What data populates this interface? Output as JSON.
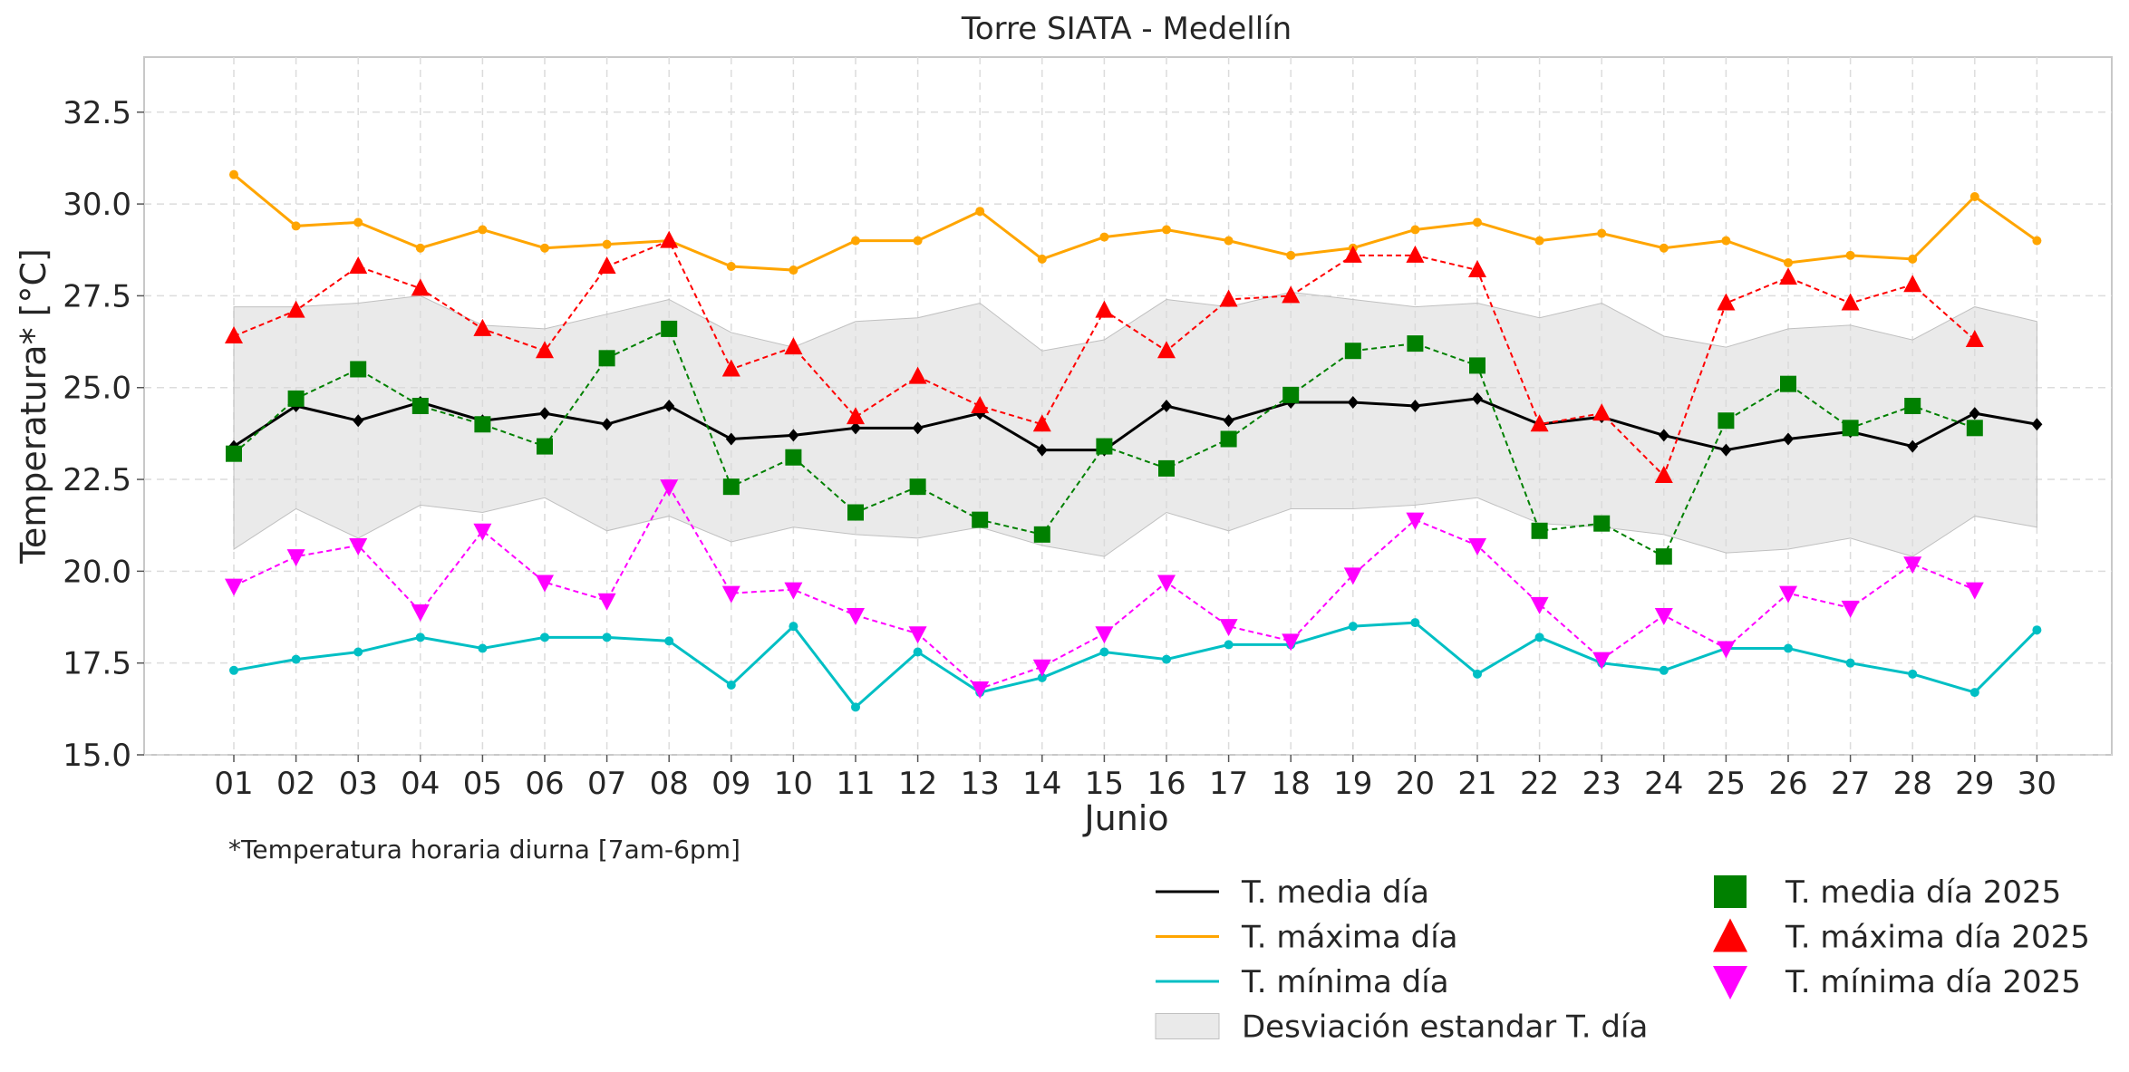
{
  "chart_data": {
    "type": "line",
    "title": "Torre SIATA - Medellín",
    "xlabel": "Junio",
    "ylabel": "Temperatura* [°C]",
    "note": "*Temperatura horaria diurna [7am-6pm]",
    "ylim": [
      15.0,
      34.0
    ],
    "yticks": [
      "15.0",
      "17.5",
      "20.0",
      "22.5",
      "25.0",
      "27.5",
      "30.0",
      "32.5"
    ],
    "categories": [
      "01",
      "02",
      "03",
      "04",
      "05",
      "06",
      "07",
      "08",
      "09",
      "10",
      "11",
      "12",
      "13",
      "14",
      "15",
      "16",
      "17",
      "18",
      "19",
      "20",
      "21",
      "22",
      "23",
      "24",
      "25",
      "26",
      "27",
      "28",
      "29",
      "30"
    ],
    "grid": true,
    "legend_position": "bottom-right",
    "band": {
      "name": "Desviación estandar T. día",
      "color": "#d9d9d9",
      "upper": [
        27.2,
        27.2,
        27.3,
        27.5,
        26.7,
        26.6,
        27.0,
        27.4,
        26.5,
        26.1,
        26.8,
        26.9,
        27.3,
        26.0,
        26.3,
        27.4,
        27.2,
        27.6,
        27.4,
        27.2,
        27.3,
        26.9,
        27.3,
        26.4,
        26.1,
        26.6,
        26.7,
        26.3,
        27.2,
        26.8
      ],
      "lower": [
        20.6,
        21.7,
        20.9,
        21.8,
        21.6,
        22.0,
        21.1,
        21.5,
        20.8,
        21.2,
        21.0,
        20.9,
        21.2,
        20.7,
        20.4,
        21.6,
        21.1,
        21.7,
        21.7,
        21.8,
        22.0,
        21.3,
        21.2,
        21.0,
        20.5,
        20.6,
        20.9,
        20.4,
        21.5,
        21.2
      ]
    },
    "series": [
      {
        "name": "T. media día",
        "color": "#000000",
        "style": "solid",
        "marker": "diamond-small",
        "values": [
          23.4,
          24.5,
          24.1,
          24.6,
          24.1,
          24.3,
          24.0,
          24.5,
          23.6,
          23.7,
          23.9,
          23.9,
          24.3,
          23.3,
          23.3,
          24.5,
          24.1,
          24.6,
          24.6,
          24.5,
          24.7,
          24.0,
          24.2,
          23.7,
          23.3,
          23.6,
          23.8,
          23.4,
          24.3,
          24.0
        ]
      },
      {
        "name": "T. máxima día",
        "color": "#ffa500",
        "style": "solid",
        "marker": "dot-small",
        "values": [
          30.8,
          29.4,
          29.5,
          28.8,
          29.3,
          28.8,
          28.9,
          29.0,
          28.3,
          28.2,
          29.0,
          29.0,
          29.8,
          28.5,
          29.1,
          29.3,
          29.0,
          28.6,
          28.8,
          29.3,
          29.5,
          29.0,
          29.2,
          28.8,
          29.0,
          28.4,
          28.6,
          28.5,
          30.2,
          29.0
        ]
      },
      {
        "name": "T. mínima día",
        "color": "#00bfc4",
        "style": "solid",
        "marker": "dot-small",
        "values": [
          17.3,
          17.6,
          17.8,
          18.2,
          17.9,
          18.2,
          18.2,
          18.1,
          16.9,
          18.5,
          16.3,
          17.8,
          16.7,
          17.1,
          17.8,
          17.6,
          18.0,
          18.0,
          18.5,
          18.6,
          17.2,
          18.2,
          17.5,
          17.3,
          17.9,
          17.9,
          17.5,
          17.2,
          16.7,
          18.4
        ]
      },
      {
        "name": "T. media día 2025",
        "color": "#008000",
        "style": "dashed",
        "marker": "square",
        "values": [
          23.2,
          24.7,
          25.5,
          24.5,
          24.0,
          23.4,
          25.8,
          26.6,
          22.3,
          23.1,
          21.6,
          22.3,
          21.4,
          21.0,
          23.4,
          22.8,
          23.6,
          24.8,
          26.0,
          26.2,
          25.6,
          21.1,
          21.3,
          20.4,
          24.1,
          25.1,
          23.9,
          24.5,
          23.9,
          null
        ]
      },
      {
        "name": "T. máxima día 2025",
        "color": "#ff0000",
        "style": "dashed",
        "marker": "triangle-up",
        "values": [
          26.4,
          27.1,
          28.3,
          27.7,
          26.6,
          26.0,
          28.3,
          29.0,
          25.5,
          26.1,
          24.2,
          25.3,
          24.5,
          24.0,
          27.1,
          26.0,
          27.4,
          27.5,
          28.6,
          28.6,
          28.2,
          24.0,
          24.3,
          22.6,
          27.3,
          28.0,
          27.3,
          27.8,
          26.3,
          null
        ]
      },
      {
        "name": "T. mínima día 2025",
        "color": "#ff00ff",
        "style": "dashed",
        "marker": "triangle-down",
        "values": [
          19.6,
          20.4,
          20.7,
          18.9,
          21.1,
          19.7,
          19.2,
          22.3,
          19.4,
          19.5,
          18.8,
          18.3,
          16.8,
          17.4,
          18.3,
          19.7,
          18.5,
          18.1,
          19.9,
          21.4,
          20.7,
          19.1,
          17.6,
          18.8,
          17.9,
          19.4,
          19.0,
          20.2,
          19.5,
          null
        ]
      }
    ]
  }
}
